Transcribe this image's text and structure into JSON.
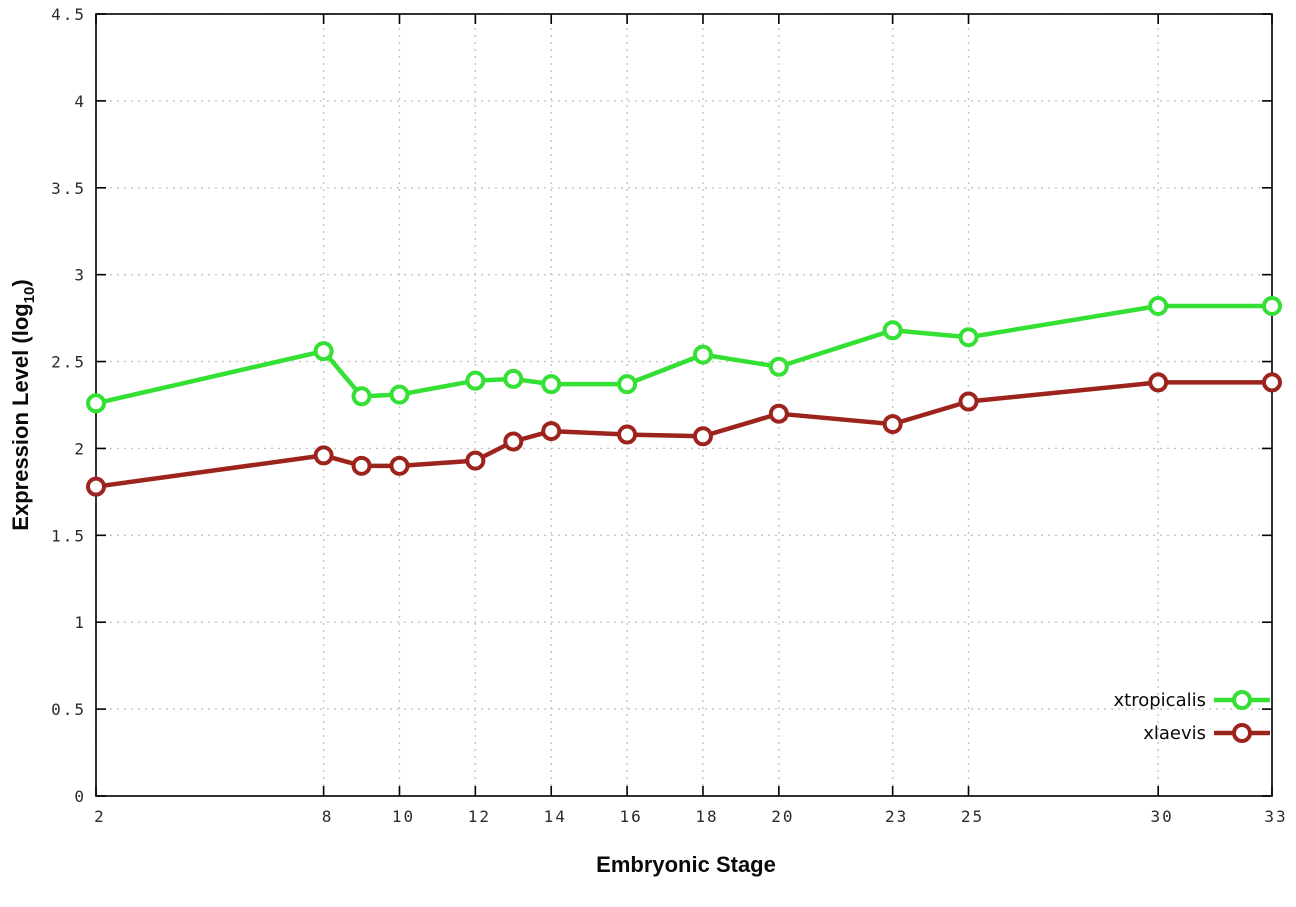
{
  "chart_data": {
    "type": "line",
    "title": "",
    "xlabel": "Embryonic Stage",
    "ylabel_main": "Expression Level (log",
    "ylabel_sub": "10",
    "ylabel_end": ")",
    "xlim": [
      2,
      33
    ],
    "ylim": [
      0,
      4.5
    ],
    "xticks": [
      2,
      8,
      10,
      12,
      14,
      16,
      18,
      20,
      23,
      25,
      30,
      33
    ],
    "yticks": [
      0,
      0.5,
      1,
      1.5,
      2,
      2.5,
      3,
      3.5,
      4,
      4.5
    ],
    "grid": true,
    "legend_position": "bottom-right",
    "x": [
      2,
      8,
      9,
      10,
      12,
      13,
      14,
      16,
      18,
      20,
      23,
      25,
      30,
      33
    ],
    "series": [
      {
        "name": "xtropicalis",
        "color": "#34e034",
        "values": [
          2.26,
          2.56,
          2.3,
          2.31,
          2.39,
          2.4,
          2.37,
          2.37,
          2.54,
          2.47,
          2.68,
          2.64,
          2.82,
          2.82
        ]
      },
      {
        "name": "xlaevis",
        "color": "#9c241d",
        "values": [
          1.78,
          1.96,
          1.9,
          1.9,
          1.93,
          2.04,
          2.1,
          2.08,
          2.07,
          2.2,
          2.14,
          2.27,
          2.38,
          2.38
        ]
      }
    ]
  }
}
